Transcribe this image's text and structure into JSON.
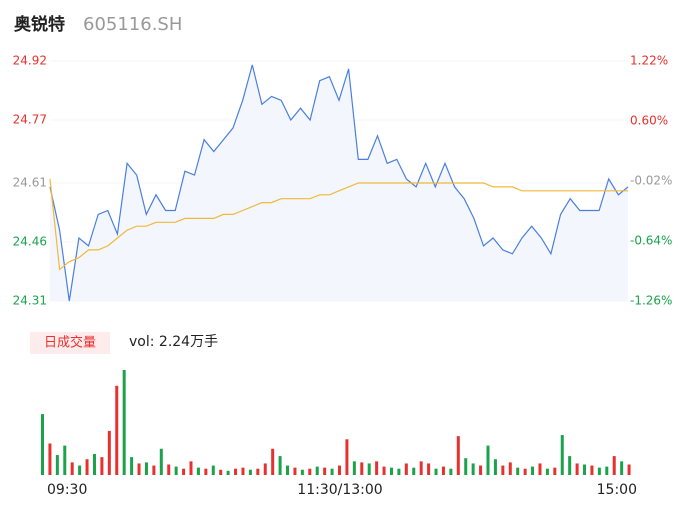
{
  "title": "奥锐特",
  "code": "605116.SH",
  "chart_data": [
    {
      "type": "line",
      "xlim": [
        0,
        240
      ],
      "x": [
        0,
        4,
        8,
        12,
        16,
        20,
        24,
        28,
        32,
        36,
        40,
        44,
        48,
        52,
        56,
        60,
        64,
        68,
        72,
        76,
        80,
        84,
        88,
        92,
        96,
        100,
        104,
        108,
        112,
        116,
        120,
        124,
        128,
        132,
        136,
        140,
        144,
        148,
        152,
        156,
        160,
        164,
        168,
        172,
        176,
        180,
        184,
        188,
        192,
        196,
        200,
        204,
        208,
        212,
        216,
        220,
        224,
        228,
        232,
        236,
        240
      ],
      "series": [
        {
          "color": "#4a7fe0",
          "fill": "#f3f6fc",
          "values": [
            24.6,
            24.49,
            24.31,
            24.47,
            24.45,
            24.53,
            24.54,
            24.48,
            24.66,
            24.63,
            24.53,
            24.58,
            24.54,
            24.54,
            24.64,
            24.63,
            24.72,
            24.69,
            24.72,
            24.75,
            24.82,
            24.91,
            24.81,
            24.83,
            24.82,
            24.77,
            24.8,
            24.77,
            24.87,
            24.88,
            24.82,
            24.9,
            24.67,
            24.67,
            24.73,
            24.66,
            24.67,
            24.62,
            24.6,
            24.66,
            24.6,
            24.66,
            24.6,
            24.57,
            24.52,
            24.45,
            24.47,
            24.44,
            24.43,
            24.47,
            24.5,
            24.47,
            24.43,
            24.53,
            24.57,
            24.54,
            24.54,
            24.54,
            24.62,
            24.58,
            24.6
          ]
        },
        {
          "color": "#f0b93a",
          "values": [
            24.62,
            24.39,
            24.41,
            24.42,
            24.44,
            24.44,
            24.45,
            24.47,
            24.49,
            24.5,
            24.5,
            24.51,
            24.51,
            24.51,
            24.52,
            24.52,
            24.52,
            24.52,
            24.53,
            24.53,
            24.54,
            24.55,
            24.56,
            24.56,
            24.57,
            24.57,
            24.57,
            24.57,
            24.58,
            24.58,
            24.59,
            24.6,
            24.61,
            24.61,
            24.61,
            24.61,
            24.61,
            24.61,
            24.61,
            24.61,
            24.61,
            24.61,
            24.61,
            24.61,
            24.61,
            24.61,
            24.6,
            24.6,
            24.6,
            24.59,
            24.59,
            24.59,
            24.59,
            24.59,
            24.59,
            24.59,
            24.59,
            24.59,
            24.59,
            24.59,
            24.59
          ]
        }
      ],
      "ylim": [
        24.31,
        24.92
      ],
      "yticks": [
        24.92,
        24.77,
        24.61,
        24.46,
        24.31
      ],
      "ytick_colors": [
        "#e8302e",
        "#e8302e",
        "#999999",
        "#1aa34a",
        "#1aa34a"
      ],
      "y2lim": [
        -1.26,
        1.22
      ],
      "y2ticks": [
        {
          "value": 1.22,
          "label": "1.22%"
        },
        {
          "value": 0.6,
          "label": "0.60%"
        },
        {
          "value": -0.02,
          "label": "-0.02%"
        },
        {
          "value": -0.64,
          "label": "-0.64%"
        },
        {
          "value": -1.26,
          "label": "-1.26%"
        }
      ],
      "y2tick_colors": [
        "#e8302e",
        "#e8302e",
        "#999999",
        "#1aa34a",
        "#1aa34a"
      ]
    },
    {
      "type": "bar",
      "title": "日成交量",
      "annotation": "vol: 2.24万手",
      "xlim": [
        0,
        240
      ],
      "x": [
        0,
        3,
        6,
        9,
        12,
        15,
        18,
        21,
        24,
        27,
        30,
        33,
        36,
        39,
        42,
        45,
        48,
        51,
        54,
        57,
        60,
        63,
        66,
        69,
        72,
        75,
        78,
        81,
        84,
        87,
        90,
        93,
        96,
        99,
        102,
        105,
        108,
        111,
        114,
        117,
        120,
        123,
        126,
        129,
        132,
        135,
        138,
        141,
        144,
        147,
        150,
        153,
        156,
        159,
        162,
        165,
        168,
        171,
        174,
        177,
        180,
        183,
        186,
        189,
        192,
        195,
        198,
        201,
        204,
        207,
        210,
        213,
        216,
        219,
        222,
        225,
        228,
        231,
        234,
        237
      ],
      "values": [
        580,
        300,
        190,
        280,
        120,
        90,
        150,
        200,
        170,
        420,
        850,
        1000,
        170,
        110,
        120,
        90,
        250,
        100,
        80,
        60,
        130,
        70,
        60,
        90,
        50,
        40,
        60,
        70,
        50,
        60,
        110,
        250,
        180,
        90,
        70,
        50,
        60,
        80,
        70,
        60,
        90,
        340,
        130,
        120,
        110,
        130,
        80,
        70,
        60,
        110,
        70,
        130,
        110,
        60,
        80,
        60,
        370,
        160,
        110,
        90,
        280,
        150,
        90,
        120,
        70,
        60,
        80,
        110,
        60,
        70,
        380,
        180,
        110,
        100,
        90,
        70,
        80,
        180,
        130,
        100
      ],
      "bar_colors": [
        "#1aa34a",
        "#e8302e",
        "#1aa34a",
        "#1aa34a",
        "#e8302e",
        "#1aa34a",
        "#e8302e",
        "#1aa34a",
        "#e8302e",
        "#e8302e",
        "#e8302e",
        "#1aa34a",
        "#1aa34a",
        "#e8302e",
        "#1aa34a",
        "#e8302e",
        "#1aa34a",
        "#e8302e",
        "#1aa34a",
        "#e8302e",
        "#e8302e",
        "#1aa34a",
        "#e8302e",
        "#1aa34a",
        "#e8302e",
        "#1aa34a",
        "#e8302e",
        "#e8302e",
        "#1aa34a",
        "#e8302e",
        "#e8302e",
        "#e8302e",
        "#1aa34a",
        "#1aa34a",
        "#e8302e",
        "#1aa34a",
        "#e8302e",
        "#1aa34a",
        "#e8302e",
        "#1aa34a",
        "#e8302e",
        "#e8302e",
        "#1aa34a",
        "#e8302e",
        "#1aa34a",
        "#e8302e",
        "#e8302e",
        "#1aa34a",
        "#1aa34a",
        "#e8302e",
        "#1aa34a",
        "#e8302e",
        "#e8302e",
        "#1aa34a",
        "#e8302e",
        "#1aa34a",
        "#e8302e",
        "#1aa34a",
        "#1aa34a",
        "#e8302e",
        "#1aa34a",
        "#1aa34a",
        "#e8302e",
        "#e8302e",
        "#1aa34a",
        "#e8302e",
        "#1aa34a",
        "#e8302e",
        "#1aa34a",
        "#e8302e",
        "#1aa34a",
        "#1aa34a",
        "#e8302e",
        "#1aa34a",
        "#e8302e",
        "#1aa34a",
        "#1aa34a",
        "#e8302e",
        "#1aa34a",
        "#e8302e"
      ],
      "ylim": [
        0,
        1000
      ],
      "xticks": [
        {
          "value": 0,
          "label": "09:30"
        },
        {
          "value": 120,
          "label": "11:30/13:00"
        },
        {
          "value": 240,
          "label": "15:00"
        }
      ]
    }
  ]
}
